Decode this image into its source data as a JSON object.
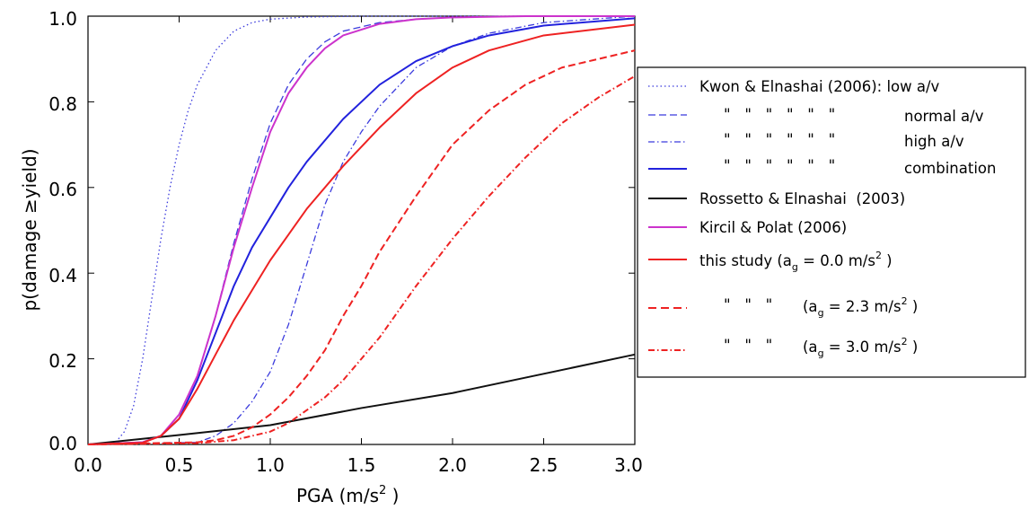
{
  "chart_data": {
    "type": "line",
    "xlabel": "PGA (m/s",
    "xlabel_sup": "2",
    "xlabel_close": " )",
    "ylabel": "p(damage ≥yield)",
    "xlim": [
      0.0,
      3.0
    ],
    "ylim": [
      0.0,
      1.0
    ],
    "xticks": [
      "0.0",
      "0.5",
      "1.0",
      "1.5",
      "2.0",
      "2.5",
      "3.0"
    ],
    "yticks": [
      "0.0",
      "0.2",
      "0.4",
      "0.6",
      "0.8",
      "1.0"
    ],
    "legend_position": "right",
    "legend": {
      "e1": "Kwon & Elnashai (2006): low a/v",
      "ditto6": "\"   \"   \"   \"   \"   \"",
      "ditto3": "\"   \"   \"",
      "normal": "normal a/v",
      "high": "high a/v",
      "combination": "combination",
      "rossetto": "Rossetto & Elnashai  (2003)",
      "kircil": "Kircil & Polat (2006)",
      "this_study": "this study (a",
      "ag_open": "(a",
      "sub_g": "g",
      "val0": " = 0.0 m/s",
      "val23": " = 2.3 m/s",
      "val30": " = 3.0 m/s",
      "sup2": "2",
      "close": " )"
    },
    "series": [
      {
        "id": "kwon-low",
        "color": "#3b3bdd",
        "style": "dotted",
        "width": 1.3,
        "x": [
          0,
          0.15,
          0.2,
          0.25,
          0.3,
          0.35,
          0.4,
          0.45,
          0.5,
          0.55,
          0.6,
          0.7,
          0.8,
          0.9,
          1.0,
          1.2,
          1.5,
          2.0,
          3.0
        ],
        "y": [
          0,
          0.004,
          0.03,
          0.09,
          0.2,
          0.34,
          0.48,
          0.6,
          0.7,
          0.78,
          0.84,
          0.92,
          0.965,
          0.985,
          0.993,
          0.998,
          1.0,
          1.0,
          1.0
        ]
      },
      {
        "id": "kwon-normal",
        "color": "#3b3bdd",
        "style": "dashed",
        "width": 1.3,
        "x": [
          0,
          0.3,
          0.4,
          0.5,
          0.6,
          0.7,
          0.8,
          0.9,
          1.0,
          1.1,
          1.2,
          1.3,
          1.4,
          1.6,
          1.8,
          2.0,
          2.4,
          3.0
        ],
        "y": [
          0,
          0.004,
          0.02,
          0.07,
          0.16,
          0.3,
          0.47,
          0.62,
          0.75,
          0.84,
          0.9,
          0.94,
          0.965,
          0.985,
          0.993,
          0.997,
          1.0,
          1.0
        ]
      },
      {
        "id": "kwon-high",
        "color": "#3b3bdd",
        "style": "dashdot",
        "width": 1.3,
        "x": [
          0,
          0.6,
          0.7,
          0.8,
          0.9,
          1.0,
          1.1,
          1.2,
          1.3,
          1.4,
          1.5,
          1.6,
          1.8,
          2.0,
          2.2,
          2.5,
          3.0
        ],
        "y": [
          0,
          0.005,
          0.02,
          0.05,
          0.1,
          0.17,
          0.28,
          0.42,
          0.56,
          0.66,
          0.73,
          0.79,
          0.88,
          0.93,
          0.96,
          0.985,
          1.0
        ]
      },
      {
        "id": "kwon-combination",
        "color": "#2222dd",
        "style": "solid",
        "width": 2.0,
        "x": [
          0,
          0.3,
          0.4,
          0.5,
          0.6,
          0.7,
          0.8,
          0.9,
          1.0,
          1.1,
          1.2,
          1.4,
          1.6,
          1.8,
          2.0,
          2.2,
          2.5,
          3.0
        ],
        "y": [
          0,
          0.005,
          0.02,
          0.06,
          0.15,
          0.26,
          0.37,
          0.46,
          0.53,
          0.6,
          0.66,
          0.76,
          0.84,
          0.895,
          0.93,
          0.955,
          0.978,
          0.995
        ]
      },
      {
        "id": "rossetto",
        "color": "#111111",
        "style": "solid",
        "width": 2.0,
        "x": [
          0,
          0.5,
          1.0,
          1.5,
          2.0,
          2.5,
          3.0
        ],
        "y": [
          0,
          0.022,
          0.045,
          0.085,
          0.12,
          0.165,
          0.21
        ]
      },
      {
        "id": "kircil",
        "color": "#cc33cc",
        "style": "solid",
        "width": 2.0,
        "x": [
          0,
          0.3,
          0.4,
          0.5,
          0.6,
          0.7,
          0.8,
          0.9,
          1.0,
          1.1,
          1.2,
          1.3,
          1.4,
          1.6,
          1.8,
          2.0,
          2.4,
          3.0
        ],
        "y": [
          0,
          0.005,
          0.02,
          0.07,
          0.16,
          0.3,
          0.46,
          0.6,
          0.73,
          0.82,
          0.88,
          0.925,
          0.955,
          0.982,
          0.993,
          0.997,
          1.0,
          1.0
        ]
      },
      {
        "id": "this-study-0",
        "color": "#ee2222",
        "style": "solid",
        "width": 2.0,
        "x": [
          0,
          0.3,
          0.4,
          0.5,
          0.6,
          0.7,
          0.8,
          0.9,
          1.0,
          1.1,
          1.2,
          1.4,
          1.6,
          1.8,
          2.0,
          2.2,
          2.5,
          3.0
        ],
        "y": [
          0,
          0.004,
          0.02,
          0.06,
          0.13,
          0.21,
          0.29,
          0.36,
          0.43,
          0.49,
          0.55,
          0.65,
          0.74,
          0.82,
          0.88,
          0.92,
          0.955,
          0.98
        ]
      },
      {
        "id": "this-study-23",
        "color": "#ee2222",
        "style": "dashed",
        "width": 2.0,
        "x": [
          0,
          0.6,
          0.7,
          0.8,
          0.9,
          1.0,
          1.1,
          1.2,
          1.3,
          1.4,
          1.5,
          1.6,
          1.8,
          2.0,
          2.2,
          2.4,
          2.6,
          2.8,
          3.0
        ],
        "y": [
          0,
          0.005,
          0.01,
          0.02,
          0.04,
          0.07,
          0.11,
          0.16,
          0.22,
          0.3,
          0.37,
          0.45,
          0.58,
          0.7,
          0.78,
          0.84,
          0.88,
          0.9,
          0.92
        ]
      },
      {
        "id": "this-study-30",
        "color": "#ee2222",
        "style": "dashdot",
        "width": 2.0,
        "x": [
          0,
          0.6,
          0.8,
          0.9,
          1.0,
          1.1,
          1.2,
          1.3,
          1.4,
          1.5,
          1.6,
          1.7,
          1.8,
          2.0,
          2.2,
          2.4,
          2.6,
          2.8,
          3.0
        ],
        "y": [
          0,
          0.003,
          0.01,
          0.02,
          0.03,
          0.05,
          0.08,
          0.11,
          0.15,
          0.2,
          0.25,
          0.31,
          0.37,
          0.48,
          0.58,
          0.67,
          0.75,
          0.81,
          0.86
        ]
      }
    ]
  }
}
